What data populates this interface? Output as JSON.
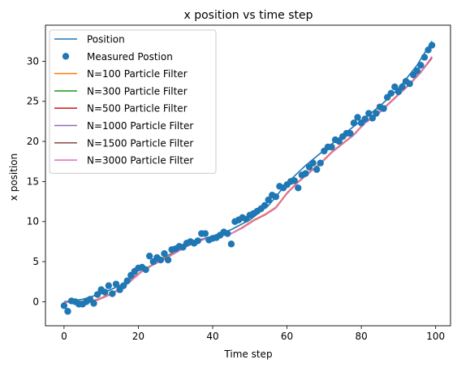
{
  "chart_data": {
    "type": "line",
    "title": "x position vs time step",
    "xlabel": "Time step",
    "ylabel": "x position",
    "xlim": [
      -5,
      104
    ],
    "ylim": [
      -3,
      34.5
    ],
    "xticks": [
      0,
      20,
      40,
      60,
      80,
      100
    ],
    "yticks": [
      0,
      5,
      10,
      15,
      20,
      25,
      30
    ],
    "grid": false,
    "legend_position": "top-left",
    "true_position": {
      "name": "Position",
      "color": "#1f77b4",
      "x": [
        0,
        5,
        10,
        15,
        20,
        25,
        30,
        35,
        40,
        45,
        50,
        55,
        60,
        65,
        70,
        75,
        80,
        85,
        90,
        95,
        99
      ],
      "y": [
        0.0,
        0.3,
        1.0,
        2.0,
        3.5,
        5.0,
        6.3,
        7.5,
        8.2,
        9.0,
        10.2,
        12.0,
        14.8,
        17.0,
        18.9,
        20.8,
        22.6,
        24.4,
        26.6,
        29.5,
        32.5
      ]
    },
    "measured": {
      "name": "Measured Postion",
      "color": "#1f77b4",
      "x": [
        0,
        1,
        2,
        3,
        4,
        5,
        6,
        7,
        8,
        9,
        10,
        11,
        12,
        13,
        14,
        15,
        16,
        17,
        18,
        19,
        20,
        21,
        22,
        23,
        24,
        25,
        26,
        27,
        28,
        29,
        30,
        31,
        32,
        33,
        34,
        35,
        36,
        37,
        38,
        39,
        40,
        41,
        42,
        43,
        44,
        45,
        46,
        47,
        48,
        49,
        50,
        51,
        52,
        53,
        54,
        55,
        56,
        57,
        58,
        59,
        60,
        61,
        62,
        63,
        64,
        65,
        66,
        67,
        68,
        69,
        70,
        71,
        72,
        73,
        74,
        75,
        76,
        77,
        78,
        79,
        80,
        81,
        82,
        83,
        84,
        85,
        86,
        87,
        88,
        89,
        90,
        91,
        92,
        93,
        94,
        95,
        96,
        97,
        98,
        99
      ],
      "y": [
        -0.5,
        -1.2,
        0.1,
        0.0,
        -0.3,
        -0.3,
        0.0,
        0.3,
        -0.2,
        0.9,
        1.5,
        1.2,
        2.0,
        1.0,
        2.2,
        1.5,
        2.0,
        2.6,
        3.3,
        3.8,
        4.2,
        4.3,
        4.0,
        5.7,
        5.0,
        5.5,
        5.2,
        6.0,
        5.2,
        6.5,
        6.6,
        6.9,
        6.8,
        7.3,
        7.5,
        7.3,
        7.6,
        8.5,
        8.5,
        7.7,
        7.9,
        8.0,
        8.3,
        8.7,
        8.5,
        7.2,
        10.0,
        10.2,
        10.5,
        10.3,
        10.8,
        11.0,
        11.3,
        11.6,
        12.0,
        12.7,
        13.3,
        13.1,
        14.4,
        14.2,
        14.6,
        15.0,
        15.1,
        14.2,
        15.8,
        16.0,
        16.8,
        17.3,
        16.5,
        17.3,
        18.8,
        19.3,
        19.3,
        20.2,
        20.0,
        20.6,
        21.0,
        21.0,
        22.3,
        23.0,
        22.3,
        22.8,
        23.5,
        22.9,
        23.5,
        24.3,
        24.1,
        25.5,
        26.0,
        26.8,
        26.2,
        26.8,
        27.5,
        27.2,
        28.3,
        28.8,
        29.5,
        30.5,
        31.4,
        32.0
      ]
    },
    "series": [
      {
        "name": "N=100 Particle Filter",
        "color": "#ff7f0e",
        "x": [
          0,
          3,
          6,
          9,
          12,
          15,
          18,
          21,
          24,
          27,
          30,
          33,
          36,
          39,
          42,
          45,
          48,
          51,
          54,
          57,
          60,
          63,
          66,
          69,
          72,
          75,
          78,
          81,
          84,
          87,
          90,
          93,
          96,
          99
        ],
        "y": [
          -0.1,
          0.1,
          0.0,
          0.3,
          0.9,
          1.6,
          2.7,
          3.9,
          4.7,
          5.4,
          6.2,
          6.9,
          7.5,
          8.0,
          8.2,
          8.5,
          9.3,
          10.2,
          10.9,
          11.8,
          13.6,
          15.0,
          16.2,
          17.3,
          18.7,
          19.8,
          20.9,
          22.4,
          23.3,
          24.6,
          25.9,
          27.2,
          28.7,
          30.5
        ]
      },
      {
        "name": "N=300 Particle Filter",
        "color": "#2ca02c",
        "x": [
          0,
          3,
          6,
          9,
          12,
          15,
          18,
          21,
          24,
          27,
          30,
          33,
          36,
          39,
          42,
          45,
          48,
          51,
          54,
          57,
          60,
          63,
          66,
          69,
          72,
          75,
          78,
          81,
          84,
          87,
          90,
          93,
          96,
          99
        ],
        "y": [
          -0.1,
          0.0,
          -0.1,
          0.2,
          0.8,
          1.5,
          2.6,
          3.8,
          4.6,
          5.3,
          6.1,
          6.9,
          7.5,
          8.0,
          8.2,
          8.5,
          9.2,
          10.1,
          10.8,
          11.7,
          13.5,
          14.9,
          16.1,
          17.2,
          18.6,
          19.7,
          20.8,
          22.3,
          23.2,
          24.5,
          25.8,
          27.1,
          28.6,
          30.5
        ]
      },
      {
        "name": "N=500 Particle Filter",
        "color": "#d62728",
        "x": [
          0,
          3,
          6,
          9,
          12,
          15,
          18,
          21,
          24,
          27,
          30,
          33,
          36,
          39,
          42,
          45,
          48,
          51,
          54,
          57,
          60,
          63,
          66,
          69,
          72,
          75,
          78,
          81,
          84,
          87,
          90,
          93,
          96,
          99
        ],
        "y": [
          -0.1,
          0.0,
          -0.1,
          0.2,
          0.8,
          1.5,
          2.6,
          3.8,
          4.6,
          5.3,
          6.1,
          6.9,
          7.5,
          8.0,
          8.2,
          8.5,
          9.2,
          10.1,
          10.8,
          11.7,
          13.5,
          14.9,
          16.1,
          17.2,
          18.6,
          19.7,
          20.8,
          22.3,
          23.2,
          24.5,
          25.8,
          27.1,
          28.6,
          30.4
        ]
      },
      {
        "name": "N=1000 Particle Filter",
        "color": "#9467bd",
        "x": [
          0,
          3,
          6,
          9,
          12,
          15,
          18,
          21,
          24,
          27,
          30,
          33,
          36,
          39,
          42,
          45,
          48,
          51,
          54,
          57,
          60,
          63,
          66,
          69,
          72,
          75,
          78,
          81,
          84,
          87,
          90,
          93,
          96,
          99
        ],
        "y": [
          -0.1,
          0.0,
          -0.1,
          0.2,
          0.8,
          1.5,
          2.6,
          3.8,
          4.6,
          5.3,
          6.1,
          6.9,
          7.5,
          8.0,
          8.2,
          8.5,
          9.2,
          10.1,
          10.8,
          11.7,
          13.5,
          14.9,
          16.1,
          17.2,
          18.6,
          19.7,
          20.8,
          22.3,
          23.2,
          24.5,
          25.8,
          27.1,
          28.6,
          30.5
        ]
      },
      {
        "name": "N=1500 Particle Filter",
        "color": "#8c564b",
        "x": [
          0,
          3,
          6,
          9,
          12,
          15,
          18,
          21,
          24,
          27,
          30,
          33,
          36,
          39,
          42,
          45,
          48,
          51,
          54,
          57,
          60,
          63,
          66,
          69,
          72,
          75,
          78,
          81,
          84,
          87,
          90,
          93,
          96,
          99
        ],
        "y": [
          -0.1,
          0.0,
          -0.1,
          0.2,
          0.8,
          1.5,
          2.6,
          3.8,
          4.6,
          5.3,
          6.1,
          6.9,
          7.5,
          8.0,
          8.2,
          8.5,
          9.2,
          10.1,
          10.8,
          11.7,
          13.5,
          14.9,
          16.1,
          17.2,
          18.6,
          19.7,
          20.8,
          22.3,
          23.2,
          24.5,
          25.8,
          27.1,
          28.6,
          30.5
        ]
      },
      {
        "name": "N=3000 Particle Filter",
        "color": "#e377c2",
        "x": [
          0,
          3,
          6,
          9,
          12,
          15,
          18,
          21,
          24,
          27,
          30,
          33,
          36,
          39,
          42,
          45,
          48,
          51,
          54,
          57,
          60,
          63,
          66,
          69,
          72,
          75,
          78,
          81,
          84,
          87,
          90,
          93,
          96,
          99
        ],
        "y": [
          -0.1,
          0.0,
          -0.2,
          0.2,
          0.8,
          1.5,
          2.6,
          3.8,
          4.6,
          5.3,
          6.1,
          6.9,
          7.5,
          8.0,
          8.2,
          8.5,
          9.2,
          10.1,
          10.8,
          11.7,
          13.5,
          14.9,
          16.1,
          17.2,
          18.6,
          19.7,
          20.8,
          22.3,
          23.2,
          24.5,
          25.8,
          27.1,
          28.6,
          30.6
        ]
      }
    ]
  }
}
